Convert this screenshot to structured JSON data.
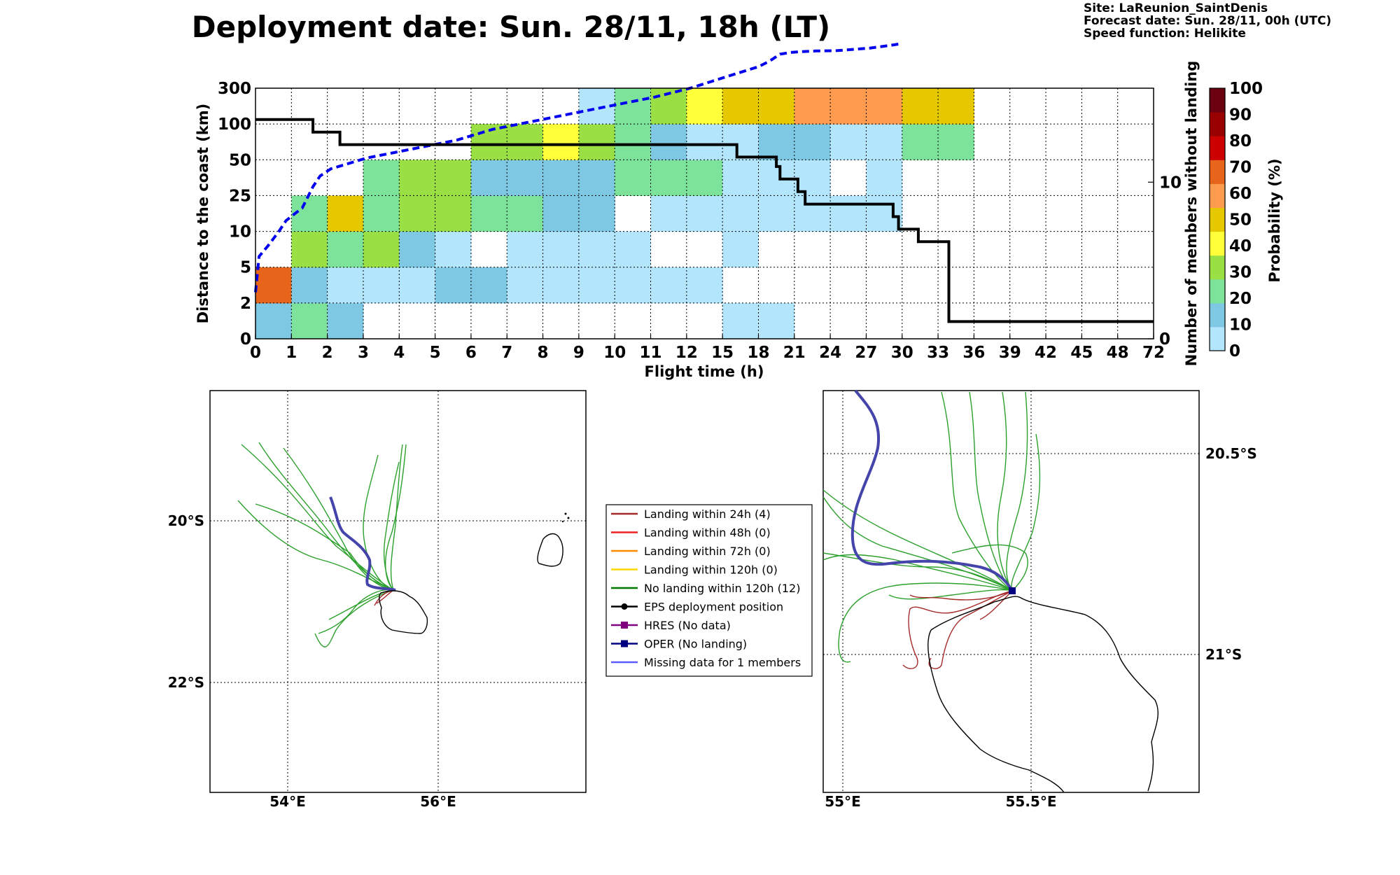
{
  "header": {
    "title": "Deployment date: Sun. 28/11, 18h (LT)",
    "site": "Site: LaReunion_SaintDenis",
    "forecast": "Forecast date: Sun. 28/11, 00h (UTC)",
    "speed": "Speed function: Helikite"
  },
  "colors": {
    "p0": "#b3e5fc",
    "p10": "#7ec8e3",
    "p20": "#7de39a",
    "p30": "#9ae045",
    "p40": "#ffff3a",
    "p50": "#e5c800",
    "p60": "#ff9b4f",
    "p70": "#e6651a",
    "p80": "#cc0000",
    "p90": "#990000",
    "p100": "#6b0010",
    "median": "#0000ee",
    "count": "#000000"
  },
  "chart_data": [
    {
      "type": "heatmap",
      "xlabel": "Flight time (h)",
      "ylabel": "Distance to the coast (km)",
      "y2label": "Number of members without landing",
      "colorbar_label": "Probability (%)",
      "x_tick_labels": [
        "0",
        "1",
        "2",
        "3",
        "4",
        "5",
        "6",
        "7",
        "8",
        "9",
        "10",
        "11",
        "12",
        "15",
        "18",
        "21",
        "24",
        "27",
        "30",
        "33",
        "36",
        "39",
        "42",
        "45",
        "48",
        "72"
      ],
      "y_tick_labels": [
        "0",
        "2",
        "5",
        "10",
        "25",
        "50",
        "100",
        "300"
      ],
      "y2_tick_labels": [
        "0",
        "10"
      ],
      "y2_range": [
        0,
        16
      ],
      "colorbar_ticks": [
        "0",
        "10",
        "20",
        "30",
        "40",
        "50",
        "60",
        "70",
        "80",
        "90",
        "100"
      ],
      "colorbar_colors": [
        "#b3e5fc",
        "#7ec8e3",
        "#7de39a",
        "#9ae045",
        "#ffff3a",
        "#e5c800",
        "#ff9b4f",
        "#e6651a",
        "#cc0000",
        "#990000",
        "#6b0010"
      ],
      "grid": true,
      "cells_note": "row index 0 = 0-2 km band upward; col index = x bin; value = probability %",
      "cells": [
        [
          0,
          0,
          10
        ],
        [
          0,
          1,
          20
        ],
        [
          0,
          2,
          10
        ],
        [
          0,
          13,
          0
        ],
        [
          0,
          14,
          0
        ],
        [
          1,
          0,
          70
        ],
        [
          1,
          1,
          10
        ],
        [
          1,
          2,
          0
        ],
        [
          1,
          3,
          0
        ],
        [
          1,
          4,
          0
        ],
        [
          1,
          5,
          10
        ],
        [
          1,
          6,
          10
        ],
        [
          1,
          7,
          0
        ],
        [
          1,
          8,
          0
        ],
        [
          1,
          9,
          0
        ],
        [
          1,
          10,
          0
        ],
        [
          1,
          11,
          0
        ],
        [
          1,
          12,
          0
        ],
        [
          2,
          1,
          30
        ],
        [
          2,
          2,
          20
        ],
        [
          2,
          3,
          30
        ],
        [
          2,
          4,
          10
        ],
        [
          2,
          5,
          0
        ],
        [
          2,
          7,
          0
        ],
        [
          2,
          8,
          0
        ],
        [
          2,
          9,
          0
        ],
        [
          2,
          10,
          0
        ],
        [
          2,
          13,
          0
        ],
        [
          3,
          1,
          20
        ],
        [
          3,
          2,
          50
        ],
        [
          3,
          3,
          20
        ],
        [
          3,
          4,
          30
        ],
        [
          3,
          5,
          30
        ],
        [
          3,
          6,
          20
        ],
        [
          3,
          7,
          20
        ],
        [
          3,
          8,
          10
        ],
        [
          3,
          9,
          10
        ],
        [
          3,
          11,
          0
        ],
        [
          3,
          12,
          0
        ],
        [
          3,
          13,
          0
        ],
        [
          3,
          14,
          0
        ],
        [
          3,
          15,
          0
        ],
        [
          3,
          16,
          0
        ],
        [
          3,
          17,
          0
        ],
        [
          4,
          3,
          20
        ],
        [
          4,
          4,
          30
        ],
        [
          4,
          5,
          30
        ],
        [
          4,
          6,
          10
        ],
        [
          4,
          7,
          10
        ],
        [
          4,
          8,
          10
        ],
        [
          4,
          9,
          10
        ],
        [
          4,
          10,
          20
        ],
        [
          4,
          11,
          20
        ],
        [
          4,
          12,
          20
        ],
        [
          4,
          13,
          0
        ],
        [
          4,
          14,
          0
        ],
        [
          4,
          15,
          0
        ],
        [
          4,
          17,
          0
        ],
        [
          5,
          6,
          30
        ],
        [
          5,
          7,
          30
        ],
        [
          5,
          8,
          40
        ],
        [
          5,
          9,
          30
        ],
        [
          5,
          10,
          20
        ],
        [
          5,
          11,
          10
        ],
        [
          5,
          12,
          0
        ],
        [
          5,
          13,
          0
        ],
        [
          5,
          14,
          10
        ],
        [
          5,
          15,
          10
        ],
        [
          5,
          16,
          0
        ],
        [
          5,
          17,
          0
        ],
        [
          5,
          18,
          20
        ],
        [
          5,
          19,
          20
        ],
        [
          6,
          9,
          0
        ],
        [
          6,
          10,
          20
        ],
        [
          6,
          11,
          30
        ],
        [
          6,
          12,
          40
        ],
        [
          6,
          13,
          50
        ],
        [
          6,
          14,
          50
        ],
        [
          6,
          15,
          60
        ],
        [
          6,
          16,
          60
        ],
        [
          6,
          17,
          60
        ],
        [
          6,
          18,
          50
        ],
        [
          6,
          19,
          50
        ]
      ],
      "series": [
        {
          "name": "",
          "style": "dashed-blue",
          "points": [
            [
              0,
              1.3
            ],
            [
              0.1,
              2.3
            ],
            [
              0.35,
              2.6
            ],
            [
              0.65,
              3
            ],
            [
              0.85,
              3.3
            ],
            [
              1.1,
              3.5
            ],
            [
              1.3,
              3.65
            ],
            [
              1.6,
              4.25
            ],
            [
              1.8,
              4.55
            ],
            [
              2.1,
              4.75
            ],
            [
              2.6,
              4.9
            ],
            [
              3.1,
              5.05
            ],
            [
              3.6,
              5.15
            ],
            [
              4.1,
              5.25
            ],
            [
              4.6,
              5.35
            ],
            [
              5.1,
              5.45
            ],
            [
              5.6,
              5.55
            ],
            [
              6.1,
              5.7
            ],
            [
              6.6,
              5.85
            ],
            [
              7.1,
              5.95
            ],
            [
              8.1,
              6.15
            ],
            [
              9.1,
              6.35
            ],
            [
              10.1,
              6.55
            ],
            [
              11.1,
              6.75
            ],
            [
              12.1,
              7.0
            ],
            [
              13.2,
              7.35
            ],
            [
              14.0,
              7.6
            ],
            [
              14.3,
              7.75
            ],
            [
              14.6,
              7.95
            ],
            [
              14.9,
              8.0
            ],
            [
              15.2,
              8.02
            ],
            [
              15.6,
              8.04
            ],
            [
              16.2,
              8.05
            ],
            [
              17.1,
              8.12
            ],
            [
              17.7,
              8.2
            ],
            [
              18.0,
              8.25
            ]
          ]
        },
        {
          "name": "",
          "style": "solid-black",
          "axis": "right",
          "points": [
            [
              0,
              14
            ],
            [
              1.6,
              14
            ],
            [
              1.6,
              13.2
            ],
            [
              2.35,
              13.2
            ],
            [
              2.35,
              12.4
            ],
            [
              13.4,
              12.4
            ],
            [
              13.4,
              11.6
            ],
            [
              14.5,
              11.6
            ],
            [
              14.5,
              11.0
            ],
            [
              14.6,
              11.0
            ],
            [
              14.6,
              10.2
            ],
            [
              15.1,
              10.2
            ],
            [
              15.1,
              9.4
            ],
            [
              15.3,
              9.4
            ],
            [
              15.3,
              8.6
            ],
            [
              17.75,
              8.6
            ],
            [
              17.75,
              7.8
            ],
            [
              17.9,
              7.8
            ],
            [
              17.9,
              7.0
            ],
            [
              18.45,
              7.0
            ],
            [
              18.45,
              6.2
            ],
            [
              19.3,
              6.2
            ],
            [
              19.3,
              1.1
            ],
            [
              25,
              1.1
            ]
          ]
        }
      ]
    },
    {
      "type": "map",
      "lon_labels": [
        "54°E",
        "56°E"
      ],
      "lat_labels": [
        "20°S",
        "22°S"
      ]
    },
    {
      "type": "map",
      "lon_labels": [
        "55°E",
        "55.5°E"
      ],
      "lat_labels": [
        "20.5°S",
        "21°S"
      ]
    }
  ],
  "legend": [
    {
      "label": "Landing within 24h (4)",
      "color": "#a52a2a",
      "marker": "none"
    },
    {
      "label": "Landing within 48h (0)",
      "color": "#ee2222",
      "marker": "none"
    },
    {
      "label": "Landing within 72h (0)",
      "color": "#ff8c00",
      "marker": "none"
    },
    {
      "label": "Landing within 120h (0)",
      "color": "#ffd700",
      "marker": "none"
    },
    {
      "label": "No landing within 120h (12)",
      "color": "#007700",
      "marker": "none"
    },
    {
      "label": "EPS deployment position",
      "color": "#000000",
      "marker": "circle"
    },
    {
      "label": "HRES (No data)",
      "color": "#800080",
      "marker": "square"
    },
    {
      "label": "OPER (No landing)",
      "color": "#000080",
      "marker": "square"
    },
    {
      "label": "Missing data for 1 members",
      "color": "#5b5bff",
      "marker": "none"
    }
  ]
}
